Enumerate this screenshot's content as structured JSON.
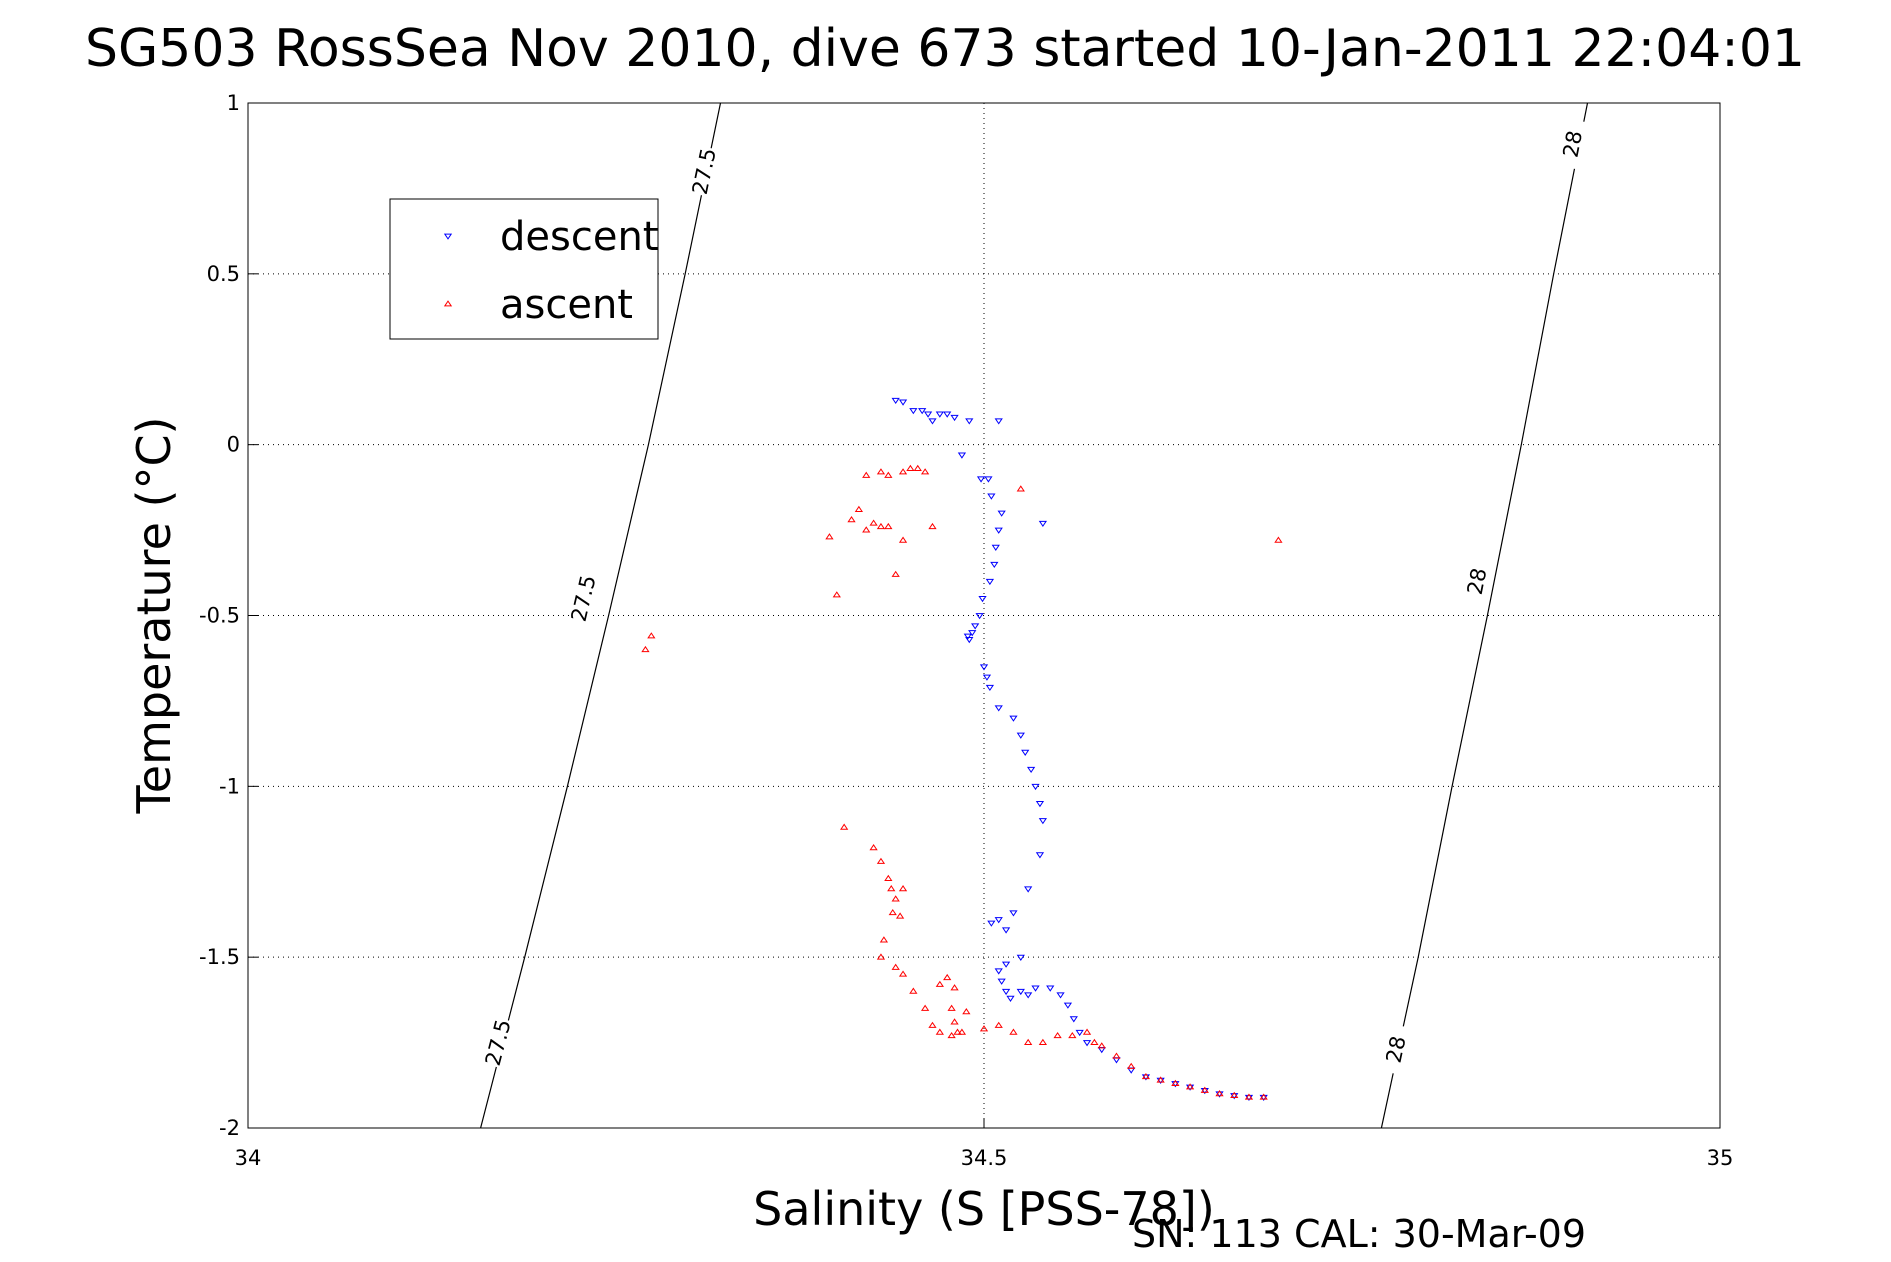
{
  "chart_data": {
    "type": "scatter",
    "title": "SG503 RossSea Nov 2010, dive 673 started 10-Jan-2011 22:04:01",
    "xlabel": "Salinity (S [PSS-78])",
    "ylabel": "Temperature (°C)",
    "xlim": [
      34,
      35
    ],
    "ylim": [
      -2,
      1
    ],
    "xticks": [
      "34",
      "34.5",
      "35"
    ],
    "yticks": [
      "1",
      "0.5",
      "0",
      "-0.5",
      "-1",
      "-1.5",
      "-2"
    ],
    "grid": true,
    "legend_position": "top-left",
    "footer": "SN: 113  CAL: 30-Mar-09",
    "contours": [
      {
        "label": "27.5",
        "points": [
          [
            34.158,
            -2.0
          ],
          [
            34.188,
            -1.5
          ],
          [
            34.217,
            -1.0
          ],
          [
            34.245,
            -0.5
          ],
          [
            34.272,
            0.0
          ],
          [
            34.297,
            0.5
          ],
          [
            34.321,
            1.0
          ]
        ],
        "label_positions": [
          [
            34.17,
            -1.75
          ],
          [
            34.228,
            -0.45
          ],
          [
            34.31,
            0.8
          ]
        ]
      },
      {
        "label": "28",
        "points": [
          [
            34.77,
            -2.0
          ],
          [
            34.795,
            -1.5
          ],
          [
            34.818,
            -1.0
          ],
          [
            34.842,
            -0.5
          ],
          [
            34.865,
            0.0
          ],
          [
            34.887,
            0.5
          ],
          [
            34.91,
            1.0
          ]
        ],
        "label_positions": [
          [
            34.78,
            -1.77
          ],
          [
            34.835,
            -0.4
          ],
          [
            34.9,
            0.88
          ]
        ]
      }
    ],
    "series": [
      {
        "name": "descent",
        "color": "#0000ff",
        "marker": "triangle-down",
        "points": [
          [
            34.44,
            0.13
          ],
          [
            34.445,
            0.125
          ],
          [
            34.452,
            0.1
          ],
          [
            34.458,
            0.1
          ],
          [
            34.462,
            0.09
          ],
          [
            34.47,
            0.09
          ],
          [
            34.475,
            0.09
          ],
          [
            34.48,
            0.08
          ],
          [
            34.49,
            0.07
          ],
          [
            34.51,
            0.07
          ],
          [
            34.465,
            0.07
          ],
          [
            34.485,
            -0.03
          ],
          [
            34.498,
            -0.1
          ],
          [
            34.503,
            -0.1
          ],
          [
            34.505,
            -0.15
          ],
          [
            34.512,
            -0.2
          ],
          [
            34.51,
            -0.25
          ],
          [
            34.54,
            -0.23
          ],
          [
            34.508,
            -0.3
          ],
          [
            34.507,
            -0.35
          ],
          [
            34.504,
            -0.4
          ],
          [
            34.499,
            -0.45
          ],
          [
            34.497,
            -0.5
          ],
          [
            34.494,
            -0.53
          ],
          [
            34.492,
            -0.55
          ],
          [
            34.49,
            -0.57
          ],
          [
            34.489,
            -0.56
          ],
          [
            34.5,
            -0.65
          ],
          [
            34.502,
            -0.68
          ],
          [
            34.504,
            -0.71
          ],
          [
            34.51,
            -0.77
          ],
          [
            34.52,
            -0.8
          ],
          [
            34.525,
            -0.85
          ],
          [
            34.528,
            -0.9
          ],
          [
            34.532,
            -0.95
          ],
          [
            34.535,
            -1.0
          ],
          [
            34.538,
            -1.05
          ],
          [
            34.54,
            -1.1
          ],
          [
            34.538,
            -1.2
          ],
          [
            34.53,
            -1.3
          ],
          [
            34.52,
            -1.37
          ],
          [
            34.51,
            -1.39
          ],
          [
            34.505,
            -1.4
          ],
          [
            34.515,
            -1.42
          ],
          [
            34.525,
            -1.5
          ],
          [
            34.515,
            -1.52
          ],
          [
            34.51,
            -1.54
          ],
          [
            34.512,
            -1.57
          ],
          [
            34.515,
            -1.6
          ],
          [
            34.518,
            -1.62
          ],
          [
            34.525,
            -1.6
          ],
          [
            34.53,
            -1.61
          ],
          [
            34.535,
            -1.59
          ],
          [
            34.545,
            -1.59
          ],
          [
            34.552,
            -1.61
          ],
          [
            34.557,
            -1.64
          ],
          [
            34.561,
            -1.68
          ],
          [
            34.565,
            -1.72
          ],
          [
            34.57,
            -1.75
          ],
          [
            34.58,
            -1.77
          ],
          [
            34.59,
            -1.8
          ],
          [
            34.6,
            -1.83
          ],
          [
            34.61,
            -1.85
          ],
          [
            34.62,
            -1.86
          ],
          [
            34.63,
            -1.87
          ],
          [
            34.64,
            -1.88
          ],
          [
            34.65,
            -1.89
          ],
          [
            34.66,
            -1.9
          ],
          [
            34.67,
            -1.905
          ],
          [
            34.68,
            -1.91
          ],
          [
            34.69,
            -1.91
          ]
        ]
      },
      {
        "name": "ascent",
        "color": "#ff0000",
        "marker": "triangle-up",
        "points": [
          [
            34.27,
            -0.6
          ],
          [
            34.274,
            -0.56
          ],
          [
            34.395,
            -0.27
          ],
          [
            34.4,
            -0.44
          ],
          [
            34.41,
            -0.22
          ],
          [
            34.415,
            -0.19
          ],
          [
            34.42,
            -0.25
          ],
          [
            34.425,
            -0.23
          ],
          [
            34.43,
            -0.24
          ],
          [
            34.435,
            -0.24
          ],
          [
            34.44,
            -0.38
          ],
          [
            34.445,
            -0.28
          ],
          [
            34.465,
            -0.24
          ],
          [
            34.42,
            -0.09
          ],
          [
            34.43,
            -0.08
          ],
          [
            34.435,
            -0.09
          ],
          [
            34.445,
            -0.08
          ],
          [
            34.45,
            -0.07
          ],
          [
            34.455,
            -0.07
          ],
          [
            34.46,
            -0.08
          ],
          [
            34.525,
            -0.13
          ],
          [
            34.7,
            -0.28
          ],
          [
            34.405,
            -1.12
          ],
          [
            34.425,
            -1.18
          ],
          [
            34.43,
            -1.22
          ],
          [
            34.435,
            -1.27
          ],
          [
            34.437,
            -1.3
          ],
          [
            34.44,
            -1.33
          ],
          [
            34.445,
            -1.3
          ],
          [
            34.438,
            -1.37
          ],
          [
            34.443,
            -1.38
          ],
          [
            34.432,
            -1.45
          ],
          [
            34.43,
            -1.5
          ],
          [
            34.44,
            -1.53
          ],
          [
            34.445,
            -1.55
          ],
          [
            34.452,
            -1.6
          ],
          [
            34.46,
            -1.65
          ],
          [
            34.465,
            -1.7
          ],
          [
            34.47,
            -1.72
          ],
          [
            34.478,
            -1.73
          ],
          [
            34.482,
            -1.72
          ],
          [
            34.478,
            -1.65
          ],
          [
            34.48,
            -1.69
          ],
          [
            34.485,
            -1.72
          ],
          [
            34.488,
            -1.66
          ],
          [
            34.47,
            -1.58
          ],
          [
            34.475,
            -1.56
          ],
          [
            34.48,
            -1.59
          ],
          [
            34.5,
            -1.71
          ],
          [
            34.51,
            -1.7
          ],
          [
            34.52,
            -1.72
          ],
          [
            34.53,
            -1.75
          ],
          [
            34.54,
            -1.75
          ],
          [
            34.55,
            -1.73
          ],
          [
            34.56,
            -1.73
          ],
          [
            34.57,
            -1.72
          ],
          [
            34.575,
            -1.75
          ],
          [
            34.58,
            -1.76
          ],
          [
            34.59,
            -1.79
          ],
          [
            34.6,
            -1.82
          ],
          [
            34.61,
            -1.85
          ],
          [
            34.62,
            -1.86
          ],
          [
            34.63,
            -1.87
          ],
          [
            34.64,
            -1.88
          ],
          [
            34.65,
            -1.89
          ],
          [
            34.66,
            -1.9
          ],
          [
            34.67,
            -1.905
          ],
          [
            34.68,
            -1.91
          ],
          [
            34.69,
            -1.91
          ]
        ]
      }
    ]
  }
}
